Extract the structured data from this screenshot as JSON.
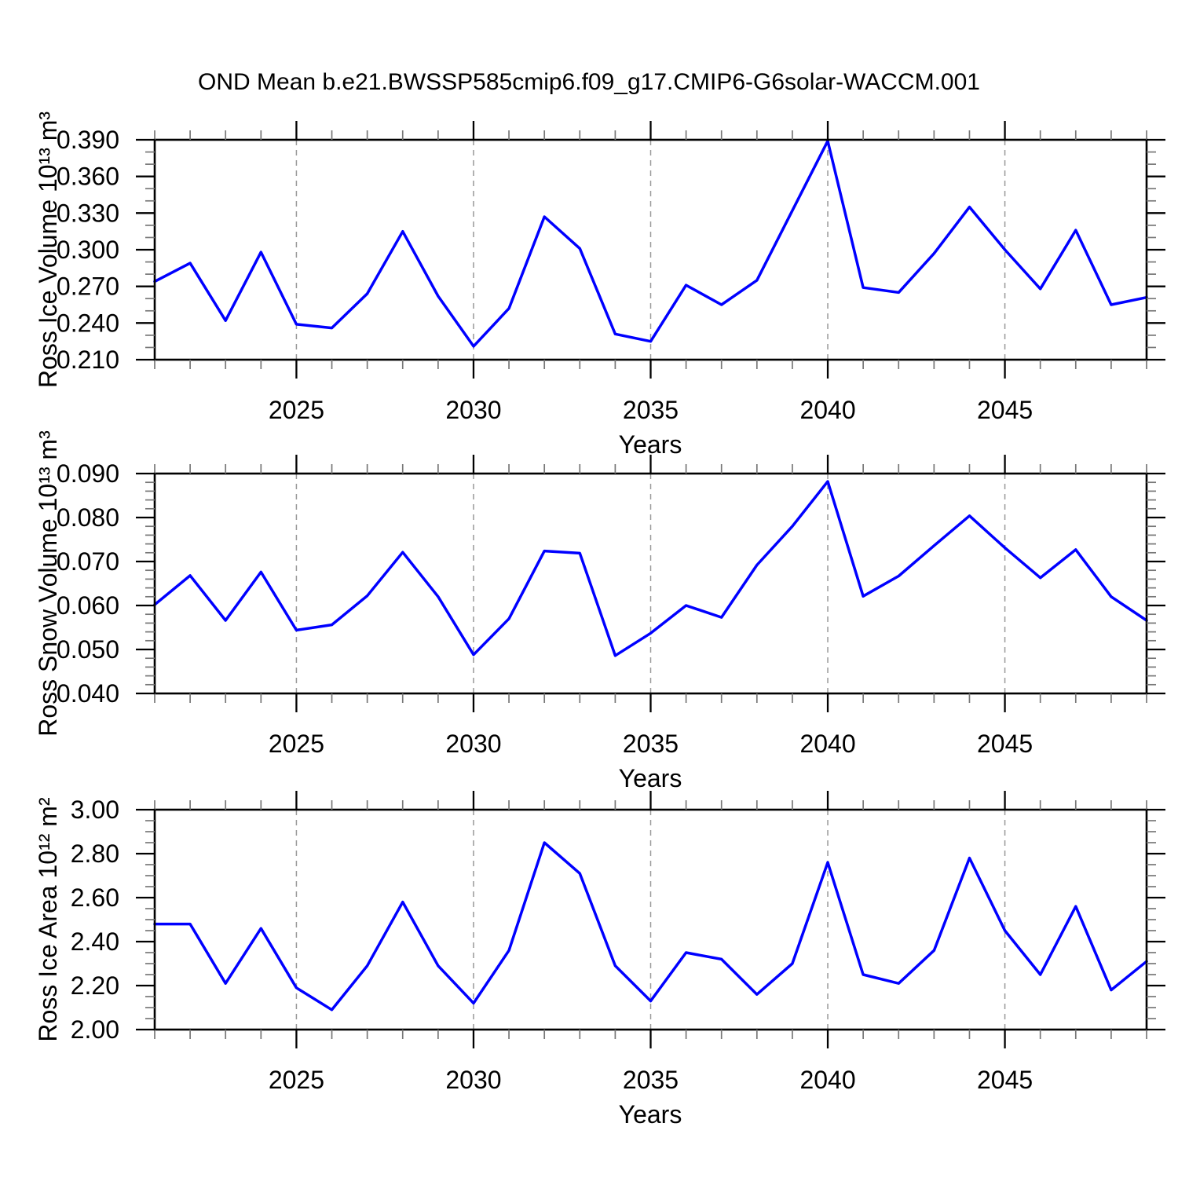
{
  "title": "OND Mean b.e21.BWSSP585cmip6.f09_g17.CMIP6-G6solar-WACCM.001",
  "colors": {
    "line": "#0000ff",
    "grid": "#999999",
    "frame": "#000000"
  },
  "chart_data": [
    {
      "type": "line",
      "ylabel": "Ross Ice Volume 10¹³ m³",
      "xlabel": "Years",
      "x": [
        2021,
        2022,
        2023,
        2024,
        2025,
        2026,
        2027,
        2028,
        2029,
        2030,
        2031,
        2032,
        2033,
        2034,
        2035,
        2036,
        2037,
        2038,
        2039,
        2040,
        2041,
        2042,
        2043,
        2044,
        2045,
        2046,
        2047,
        2048,
        2049
      ],
      "values": [
        0.274,
        0.289,
        0.242,
        0.298,
        0.239,
        0.236,
        0.264,
        0.315,
        0.262,
        0.221,
        0.252,
        0.327,
        0.301,
        0.231,
        0.225,
        0.271,
        0.255,
        0.275,
        0.332,
        0.389,
        0.269,
        0.265,
        0.297,
        0.335,
        0.3,
        0.268,
        0.316,
        0.255,
        0.261
      ],
      "ylim": [
        0.21,
        0.39
      ],
      "yticks": [
        0.21,
        0.24,
        0.27,
        0.3,
        0.33,
        0.36,
        0.39
      ],
      "ytick_decimals": 3,
      "yminor_step": 0.01,
      "xticks": [
        2025,
        2030,
        2035,
        2040,
        2045
      ],
      "gridline_x": [
        2025,
        2030,
        2035,
        2040,
        2045
      ],
      "grid": true,
      "legend": null
    },
    {
      "type": "line",
      "ylabel": "Ross Snow Volume 10¹³ m³",
      "xlabel": "Years",
      "x": [
        2021,
        2022,
        2023,
        2024,
        2025,
        2026,
        2027,
        2028,
        2029,
        2030,
        2031,
        2032,
        2033,
        2034,
        2035,
        2036,
        2037,
        2038,
        2039,
        2040,
        2041,
        2042,
        2043,
        2044,
        2045,
        2046,
        2047,
        2048,
        2049
      ],
      "values": [
        0.0602,
        0.0668,
        0.0566,
        0.0676,
        0.0544,
        0.0556,
        0.0622,
        0.0721,
        0.062,
        0.0488,
        0.057,
        0.0724,
        0.0719,
        0.0486,
        0.0537,
        0.06,
        0.0573,
        0.0692,
        0.078,
        0.0882,
        0.0621,
        0.0667,
        0.0736,
        0.0804,
        0.0731,
        0.0663,
        0.0727,
        0.062,
        0.0566
      ],
      "ylim": [
        0.04,
        0.09
      ],
      "yticks": [
        0.04,
        0.05,
        0.06,
        0.07,
        0.08,
        0.09
      ],
      "ytick_decimals": 3,
      "yminor_step": 0.002,
      "xticks": [
        2025,
        2030,
        2035,
        2040,
        2045
      ],
      "gridline_x": [
        2025,
        2030,
        2035,
        2040,
        2045
      ],
      "grid": true,
      "legend": null
    },
    {
      "type": "line",
      "ylabel": "Ross Ice Area 10¹² m²",
      "xlabel": "Years",
      "x": [
        2021,
        2022,
        2023,
        2024,
        2025,
        2026,
        2027,
        2028,
        2029,
        2030,
        2031,
        2032,
        2033,
        2034,
        2035,
        2036,
        2037,
        2038,
        2039,
        2040,
        2041,
        2042,
        2043,
        2044,
        2045,
        2046,
        2047,
        2048,
        2049
      ],
      "values": [
        2.48,
        2.48,
        2.21,
        2.46,
        2.19,
        2.09,
        2.29,
        2.58,
        2.29,
        2.12,
        2.36,
        2.85,
        2.71,
        2.29,
        2.13,
        2.35,
        2.32,
        2.16,
        2.3,
        2.76,
        2.25,
        2.21,
        2.36,
        2.78,
        2.45,
        2.25,
        2.56,
        2.18,
        2.31
      ],
      "ylim": [
        2.0,
        3.0
      ],
      "yticks": [
        2.0,
        2.2,
        2.4,
        2.6,
        2.8,
        3.0
      ],
      "ytick_decimals": 2,
      "yminor_step": 0.05,
      "xticks": [
        2025,
        2030,
        2035,
        2040,
        2045
      ],
      "gridline_x": [
        2025,
        2030,
        2035,
        2040,
        2045
      ],
      "grid": true,
      "legend": null
    }
  ]
}
